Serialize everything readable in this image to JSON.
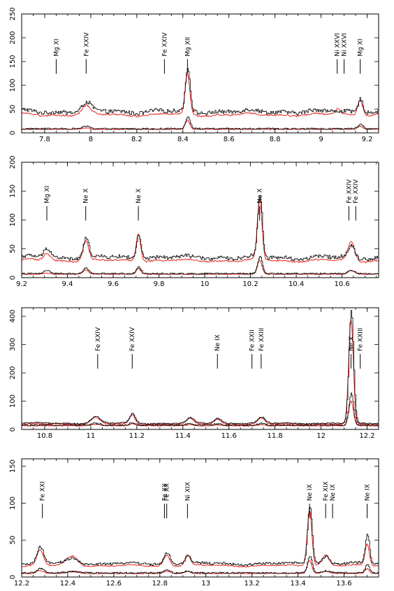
{
  "colors": {
    "series_black": "#000000",
    "series_red": "#e8241f",
    "frame": "#000000",
    "background": "#ffffff"
  },
  "chart_data": [
    {
      "type": "line",
      "xlim": [
        7.7,
        9.25
      ],
      "ylim": [
        0,
        250
      ],
      "xticks": [
        7.8,
        8,
        8.2,
        8.4,
        8.6,
        8.8,
        9,
        9.2
      ],
      "xtick_labels": [
        "7.8",
        "8",
        "8.2",
        "8.4",
        "8.6",
        "8.8",
        "9",
        "9.2"
      ],
      "yticks": [
        0,
        50,
        100,
        150,
        200,
        250
      ],
      "ytick_labels": [
        "0",
        "50",
        "100",
        "150",
        "200",
        "250"
      ],
      "baseline": 45,
      "peaks": [
        {
          "x": 7.98,
          "black": 62,
          "red": 55,
          "w": 0.018
        },
        {
          "x": 8.42,
          "black": 135,
          "red": 123,
          "w": 0.01
        },
        {
          "x": 9.07,
          "black": 45,
          "red": 50,
          "w": 0.012
        },
        {
          "x": 9.17,
          "black": 75,
          "red": 72,
          "w": 0.011
        }
      ],
      "lines": [
        {
          "label": "Mg XI",
          "x": 7.85
        },
        {
          "label": "Fe XXIV",
          "x": 7.98
        },
        {
          "label": "Fe XXIV",
          "x": 8.32
        },
        {
          "label": "Mg XII",
          "x": 8.42
        },
        {
          "label": "Ni XXVI",
          "x": 9.07
        },
        {
          "label": "Ni XXVI",
          "x": 9.1
        },
        {
          "label": "Mg XI",
          "x": 9.17
        }
      ]
    },
    {
      "type": "line",
      "xlim": [
        9.2,
        10.76
      ],
      "ylim": [
        0,
        200
      ],
      "xticks": [
        9.2,
        9.4,
        9.6,
        9.8,
        10,
        10.2,
        10.4,
        10.6
      ],
      "xtick_labels": [
        "9.2",
        "9.4",
        "9.6",
        "9.8",
        "10",
        "10.2",
        "10.4",
        "10.6"
      ],
      "yticks": [
        0,
        50,
        100,
        150,
        200
      ],
      "ytick_labels": [
        "0",
        "50",
        "100",
        "150",
        "200"
      ],
      "baseline": 35,
      "peaks": [
        {
          "x": 9.31,
          "black": 52,
          "red": 42,
          "w": 0.015
        },
        {
          "x": 9.48,
          "black": 68,
          "red": 65,
          "w": 0.012
        },
        {
          "x": 9.71,
          "black": 75,
          "red": 78,
          "w": 0.01
        },
        {
          "x": 10.24,
          "black": 142,
          "red": 136,
          "w": 0.01
        },
        {
          "x": 10.64,
          "black": 55,
          "red": 62,
          "w": 0.014
        }
      ],
      "lines": [
        {
          "label": "Mg XI",
          "x": 9.31
        },
        {
          "label": "Ne X",
          "x": 9.48
        },
        {
          "label": "Ne X",
          "x": 9.71
        },
        {
          "label": "Ne X",
          "x": 10.24
        },
        {
          "label": "Fe XXIV",
          "x": 10.63
        },
        {
          "label": "Fe XXIV",
          "x": 10.66
        }
      ]
    },
    {
      "type": "line",
      "xlim": [
        10.7,
        12.25
      ],
      "ylim": [
        0,
        430
      ],
      "xticks": [
        10.8,
        11,
        11.2,
        11.4,
        11.6,
        11.8,
        12,
        12.2
      ],
      "xtick_labels": [
        "10.8",
        "11",
        "11.2",
        "11.4",
        "11.6",
        "11.8",
        "12",
        "12.2"
      ],
      "yticks": [
        0,
        100,
        200,
        300,
        400
      ],
      "ytick_labels": [
        "0",
        "100",
        "200",
        "300",
        "400"
      ],
      "baseline": 22,
      "peaks": [
        {
          "x": 11.02,
          "black": 45,
          "red": 42,
          "w": 0.02
        },
        {
          "x": 11.18,
          "black": 55,
          "red": 52,
          "w": 0.012
        },
        {
          "x": 11.43,
          "black": 40,
          "red": 38,
          "w": 0.015
        },
        {
          "x": 11.55,
          "black": 40,
          "red": 36,
          "w": 0.015
        },
        {
          "x": 11.74,
          "black": 42,
          "red": 40,
          "w": 0.015
        },
        {
          "x": 12.13,
          "black": 420,
          "red": 390,
          "w": 0.01
        }
      ],
      "lines": [
        {
          "label": "Fe XXIV",
          "x": 11.03
        },
        {
          "label": "Fe XXIV",
          "x": 11.18
        },
        {
          "label": "Ne IX",
          "x": 11.55
        },
        {
          "label": "Fe XXII",
          "x": 11.7
        },
        {
          "label": "Fe XXIII",
          "x": 11.74
        },
        {
          "label": "Ne X",
          "x": 12.13
        },
        {
          "label": "Fe XXIII",
          "x": 12.17
        }
      ]
    },
    {
      "type": "line",
      "xlim": [
        12.2,
        13.75
      ],
      "ylim": [
        0,
        160
      ],
      "xticks": [
        12.2,
        12.4,
        12.6,
        12.8,
        13,
        13.2,
        13.4,
        13.6
      ],
      "xtick_labels": [
        "12.2",
        "12.4",
        "12.6",
        "12.8",
        "13",
        "13.2",
        "13.4",
        "13.6"
      ],
      "yticks": [
        0,
        50,
        100,
        150
      ],
      "ytick_labels": [
        "0",
        "50",
        "100",
        "150"
      ],
      "baseline": 18,
      "peaks": [
        {
          "x": 12.28,
          "black": 40,
          "red": 36,
          "w": 0.014
        },
        {
          "x": 12.42,
          "black": 25,
          "red": 28,
          "w": 0.025
        },
        {
          "x": 12.83,
          "black": 33,
          "red": 30,
          "w": 0.013
        },
        {
          "x": 12.92,
          "black": 28,
          "red": 30,
          "w": 0.012
        },
        {
          "x": 13.45,
          "black": 98,
          "red": 92,
          "w": 0.01
        },
        {
          "x": 13.52,
          "black": 28,
          "red": 30,
          "w": 0.016
        },
        {
          "x": 13.7,
          "black": 58,
          "red": 45,
          "w": 0.009
        }
      ],
      "lines": [
        {
          "label": "Fe XXI",
          "x": 12.29
        },
        {
          "label": "Fe XX",
          "x": 12.82
        },
        {
          "label": "Fe XX",
          "x": 12.83
        },
        {
          "label": "Ni XIX",
          "x": 12.92
        },
        {
          "label": "Ne IX",
          "x": 13.45
        },
        {
          "label": "Fe XIX",
          "x": 13.52
        },
        {
          "label": "Ne IX",
          "x": 13.55
        },
        {
          "label": "Ne IX",
          "x": 13.7
        }
      ]
    }
  ]
}
